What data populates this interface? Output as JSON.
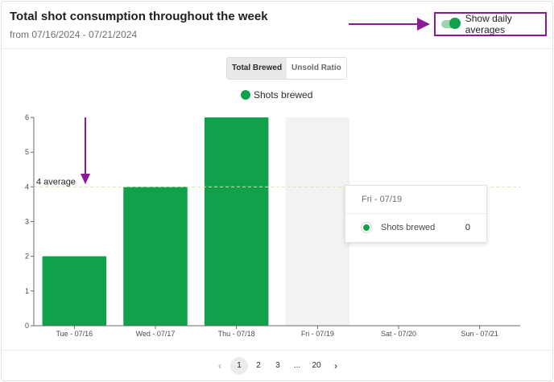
{
  "header": {
    "title": "Total shot consumption throughout the week",
    "subtitle": "from 07/16/2024 - 07/21/2024",
    "toggle_label": "Show daily averages",
    "toggle_on": true
  },
  "tabs": [
    {
      "label": "Total Brewed",
      "active": true
    },
    {
      "label": "Unsold Ratio",
      "active": false
    }
  ],
  "legend": {
    "label": "Shots brewed",
    "color": "#12a14b"
  },
  "average_label": "4 average",
  "tooltip": {
    "title": "Fri - 07/19",
    "series": "Shots brewed",
    "value": "0"
  },
  "pagination": {
    "prev_icon": "chevron-left-icon",
    "pages": [
      "1",
      "2",
      "3",
      "...",
      "20"
    ],
    "current": "1",
    "next_icon": "chevron-right-icon"
  },
  "colors": {
    "bar": "#12a14b",
    "highlight": "#f2f2f2",
    "average_line": "#d8e6a8",
    "annotation": "#8a1a96"
  },
  "chart_data": {
    "type": "bar",
    "categories": [
      "Tue - 07/16",
      "Wed - 07/17",
      "Thu - 07/18",
      "Fri - 07/19",
      "Sat - 07/20",
      "Sun - 07/21"
    ],
    "series": [
      {
        "name": "Shots brewed",
        "values": [
          2,
          4,
          6,
          0,
          0,
          0
        ]
      }
    ],
    "ylim": [
      0,
      6
    ],
    "yticks": [
      0,
      1,
      2,
      3,
      4,
      5,
      6
    ],
    "average": 4,
    "highlighted_category": "Fri - 07/19",
    "grid": false,
    "legend_position": "top-center"
  }
}
